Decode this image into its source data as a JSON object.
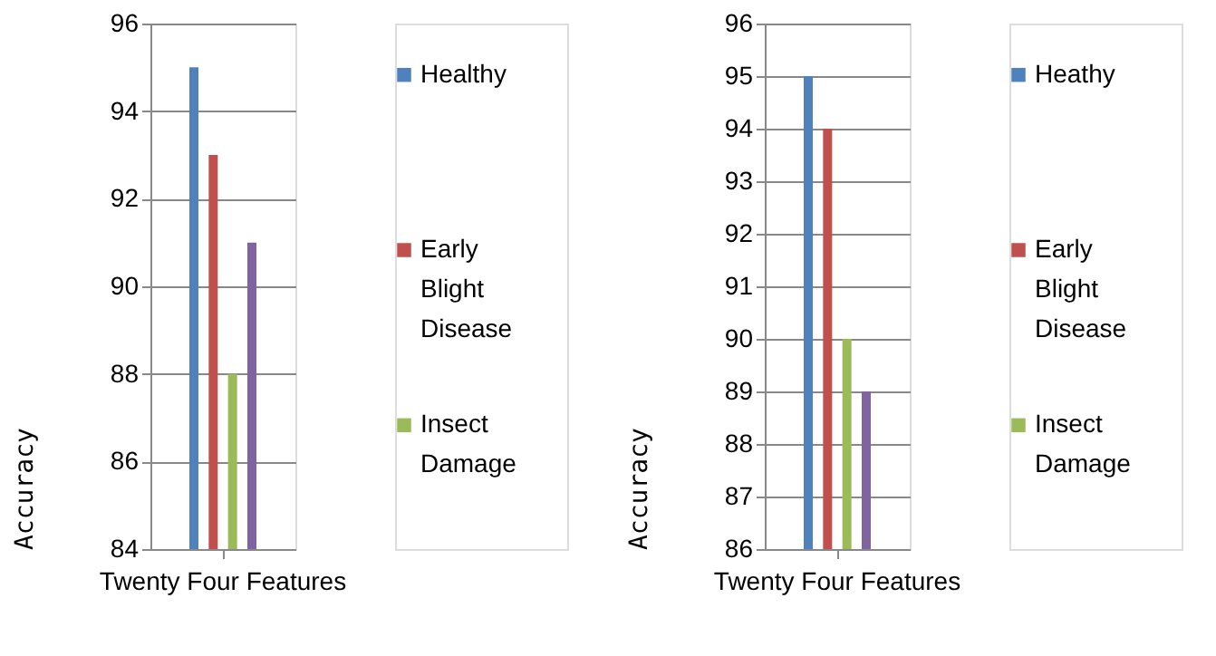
{
  "chart_data": [
    {
      "type": "bar",
      "categories": [
        "Twenty Four Features"
      ],
      "ylabel": "Accuracy",
      "ylim": [
        84,
        96
      ],
      "yticks": [
        84,
        86,
        88,
        90,
        92,
        94,
        96
      ],
      "grid": "y",
      "legend": "right",
      "series": [
        {
          "name": "Healthy",
          "color": "#4f81bd",
          "values": [
            95
          ]
        },
        {
          "name": "Early Blight Disease",
          "color": "#c0504d",
          "values": [
            93
          ]
        },
        {
          "name": "Insect Damage",
          "color": "#9bbb59",
          "values": [
            88
          ]
        },
        {
          "color": "#8064a2",
          "values": [
            91
          ]
        }
      ]
    },
    {
      "type": "bar",
      "categories": [
        "Twenty Four Features"
      ],
      "ylabel": "Accuracy",
      "ylim": [
        86,
        96
      ],
      "yticks": [
        86,
        87,
        88,
        89,
        90,
        91,
        92,
        93,
        94,
        95,
        96
      ],
      "grid": "y",
      "legend": "right",
      "series": [
        {
          "name": "Heathy",
          "color": "#4f81bd",
          "values": [
            95
          ]
        },
        {
          "name": "Early Blight Disease",
          "color": "#c0504d",
          "values": [
            94
          ]
        },
        {
          "name": "Insect Damage",
          "color": "#9bbb59",
          "values": [
            90
          ]
        },
        {
          "color": "#8064a2",
          "values": [
            89
          ]
        }
      ]
    }
  ]
}
